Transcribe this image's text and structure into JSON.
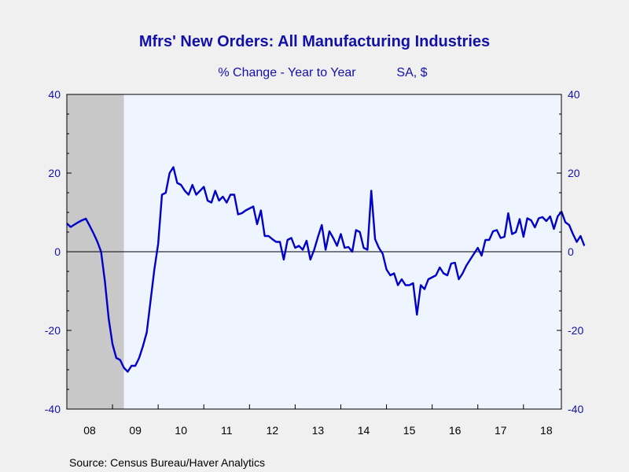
{
  "colors": {
    "background": "#f0f0f0",
    "plot_background": "#eef5ff",
    "recession_shade": "#c8c8c8",
    "line": "#0000c8",
    "title": "#1111aa",
    "axis_text": "#1111aa",
    "source_text": "#000000"
  },
  "chart_data": {
    "type": "line",
    "title": "Mfrs' New Orders: All Manufacturing Industries",
    "subtitle": "% Change - Year to Year",
    "subtitle_right": "SA, $",
    "source": "Source:  Census Bureau/Haver Analytics",
    "ylim": [
      -40,
      40
    ],
    "yticks": [
      -40,
      -20,
      0,
      20,
      40
    ],
    "xlim": [
      2008.0,
      2018.83
    ],
    "xtick_labels": [
      "08",
      "09",
      "10",
      "11",
      "12",
      "13",
      "14",
      "15",
      "16",
      "17",
      "18"
    ],
    "xtick_centers": [
      2008.5,
      2009.5,
      2010.5,
      2011.5,
      2012.5,
      2013.5,
      2014.5,
      2015.5,
      2016.5,
      2017.5,
      2018.5
    ],
    "grid": false,
    "zero_line": true,
    "recession_shading": [
      [
        2008.0,
        2009.25
      ]
    ],
    "series": [
      {
        "x_start": 2008.0,
        "x_step_months": 1,
        "values": [
          7.2,
          6.3,
          6.9,
          7.5,
          8.0,
          8.4,
          6.6,
          4.7,
          2.6,
          0.0,
          -7.5,
          -17.0,
          -23.5,
          -27.0,
          -27.5,
          -29.5,
          -30.5,
          -29.0,
          -29.0,
          -27.0,
          -24.0,
          -20.5,
          -12.5,
          -4.5,
          2.0,
          14.5,
          15.0,
          20.0,
          21.5,
          17.5,
          17.0,
          15.5,
          14.5,
          17.0,
          14.5,
          15.5,
          16.5,
          13.0,
          12.5,
          15.5,
          13.0,
          14.0,
          12.5,
          14.5,
          14.5,
          9.5,
          9.8,
          10.5,
          11.0,
          11.5,
          7.0,
          10.5,
          4.0,
          4.0,
          3.2,
          2.5,
          2.5,
          -2.0,
          3.0,
          3.5,
          1.0,
          1.5,
          0.5,
          2.8,
          -2.0,
          0.5,
          3.8,
          6.8,
          0.5,
          5.2,
          3.5,
          1.5,
          4.5,
          1.0,
          1.2,
          0.0,
          5.5,
          5.0,
          1.0,
          0.5,
          15.5,
          3.2,
          1.0,
          -0.5,
          -4.5,
          -6.0,
          -5.5,
          -8.5,
          -7.0,
          -8.5,
          -8.5,
          -8.0,
          -16.0,
          -8.5,
          -9.5,
          -7.0,
          -6.5,
          -6.0,
          -4.0,
          -5.5,
          -6.0,
          -3.0,
          -2.8,
          -7.0,
          -5.5,
          -3.5,
          -2.0,
          -0.5,
          1.0,
          -1.0,
          3.0,
          3.0,
          5.2,
          5.5,
          3.5,
          3.8,
          9.8,
          4.5,
          5.0,
          8.3,
          3.8,
          8.5,
          8.0,
          6.2,
          8.5,
          8.8,
          7.8,
          9.0,
          5.8,
          9.0,
          10.2,
          7.5,
          6.8,
          4.5,
          2.5,
          4.0,
          1.5
        ]
      }
    ]
  }
}
